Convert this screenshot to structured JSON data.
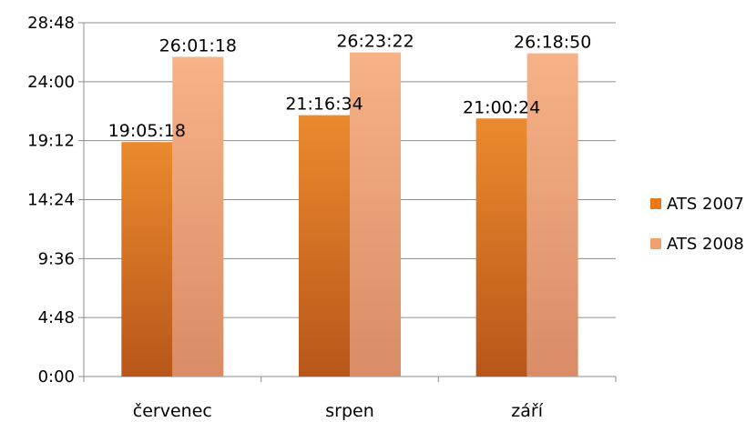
{
  "chart_data": {
    "type": "bar",
    "title": "",
    "xlabel": "",
    "ylabel": "",
    "categories": [
      "červenec",
      "srpen",
      "září"
    ],
    "series": [
      {
        "name": "ATS 2007",
        "values": [
          19.088,
          21.276,
          21.007
        ],
        "labels": [
          "19:05:18",
          "21:16:34",
          "21:00:24"
        ],
        "color": "#e6781e"
      },
      {
        "name": "ATS 2008",
        "values": [
          26.022,
          26.389,
          26.314
        ],
        "labels": [
          "26:01:18",
          "26:23:22",
          "26:18:50"
        ],
        "color": "#f2a06e"
      }
    ],
    "ylim": [
      0,
      28.8
    ],
    "yticks": [
      0,
      4.8,
      9.6,
      14.4,
      19.2,
      24,
      28.8
    ],
    "ytick_labels": [
      "0:00",
      "4:48",
      "9:36",
      "14:24",
      "19:12",
      "24:00",
      "28:48"
    ],
    "grid": true,
    "legend_position": "right"
  }
}
